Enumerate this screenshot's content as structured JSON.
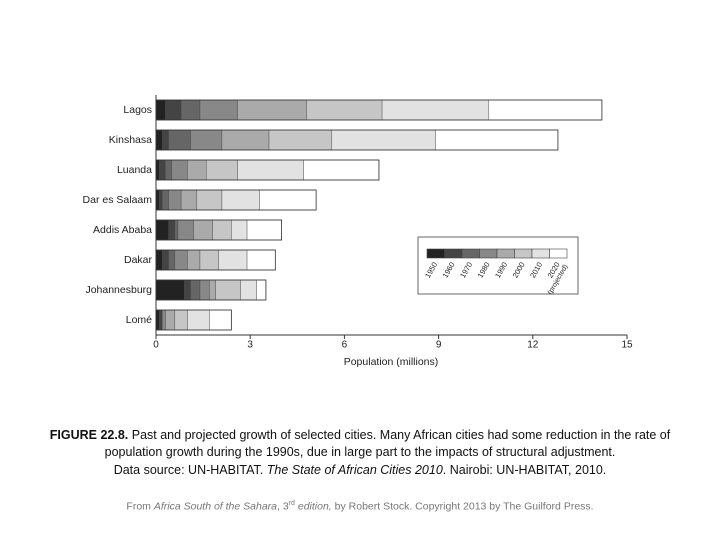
{
  "chart_data": {
    "type": "stacked-barh",
    "categories": [
      "Lagos",
      "Kinshasa",
      "Luanda",
      "Dar es Salaam",
      "Addis Ababa",
      "Dakar",
      "Johannesburg",
      "Lomé"
    ],
    "series": [
      {
        "name": "1950",
        "color": "#222222",
        "values": [
          0.3,
          0.2,
          0.1,
          0.1,
          0.4,
          0.2,
          0.9,
          0.1
        ]
      },
      {
        "name": "1960",
        "color": "#444444",
        "values": [
          0.5,
          0.2,
          0.2,
          0.1,
          0.2,
          0.2,
          0.2,
          0.1
        ]
      },
      {
        "name": "1970",
        "color": "#666666",
        "values": [
          0.6,
          0.7,
          0.2,
          0.2,
          0.1,
          0.2,
          0.3,
          0.0
        ]
      },
      {
        "name": "1980",
        "color": "#888888",
        "values": [
          1.2,
          1.0,
          0.5,
          0.4,
          0.5,
          0.4,
          0.3,
          0.1
        ]
      },
      {
        "name": "1990",
        "color": "#aaaaaa",
        "values": [
          2.2,
          1.5,
          0.6,
          0.5,
          0.6,
          0.4,
          0.2,
          0.3
        ]
      },
      {
        "name": "2000",
        "color": "#c6c6c6",
        "values": [
          2.4,
          2.0,
          1.0,
          0.8,
          0.6,
          0.6,
          0.8,
          0.4
        ]
      },
      {
        "name": "2010",
        "color": "#e2e2e2",
        "values": [
          3.4,
          3.3,
          2.1,
          1.2,
          0.5,
          0.9,
          0.5,
          0.7
        ]
      },
      {
        "name": "2020",
        "color": "#ffffff",
        "values": [
          3.6,
          3.9,
          2.4,
          1.8,
          1.1,
          0.9,
          0.3,
          0.7
        ]
      }
    ],
    "legend_note": "(projected)",
    "xlabel": "Population (millions)",
    "xlim": [
      0,
      15
    ],
    "xticks": [
      0,
      3,
      6,
      9,
      12,
      15
    ]
  },
  "caption": {
    "figure": "FIGURE 22.8.",
    "text": "Past and projected growth of selected cities. Many African cities had some reduction in the rate of population growth during the 1990s, due in large part to the impacts of structural adjustment.",
    "source_prefix": "Data source: UN-HABITAT.",
    "source_title": "The State of African Cities 2010",
    "source_suffix": ". Nairobi: UN-HABITAT, 2010."
  },
  "credit": {
    "prefix": "From",
    "title": "Africa South of the Sahara",
    "edition_num": ", 3",
    "edition_sup": "rd",
    "edition_word": "edition,",
    "rest": "by Robert Stock. Copyright 2013 by The Guilford Press."
  }
}
